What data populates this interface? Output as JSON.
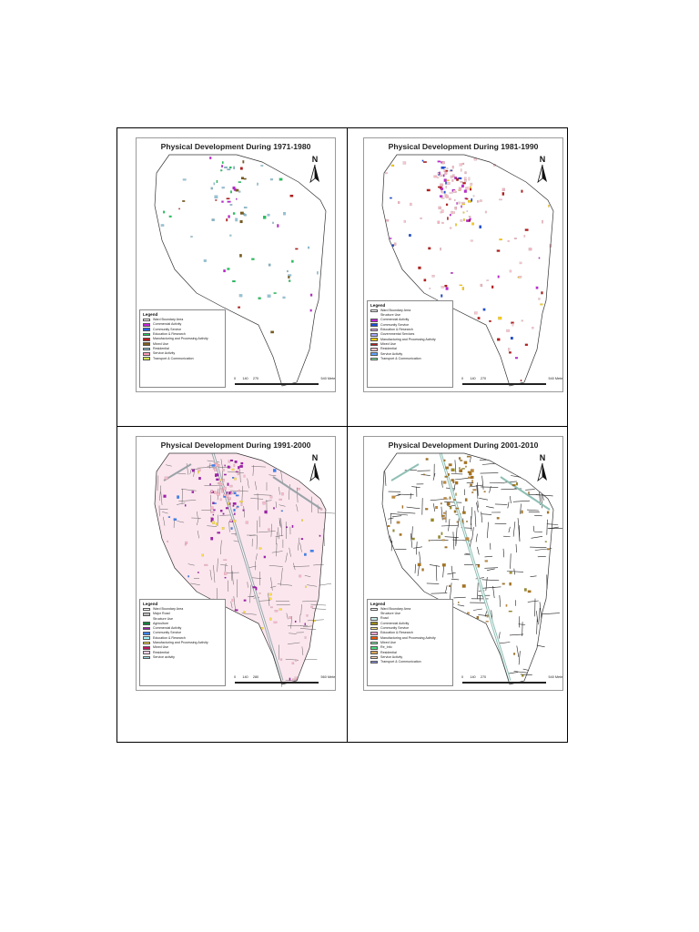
{
  "panels": [
    {
      "id": "panel-1",
      "title": "Physical Development During 1971-1980",
      "north_label": "N",
      "legend_title": "Legend",
      "legend": [
        {
          "label": "Ward Boundary Area",
          "color": "#ffffff"
        },
        {
          "label": "Commercial Activity",
          "color": "#c026d3"
        },
        {
          "label": "Community Service",
          "color": "#2563eb"
        },
        {
          "label": "Education & Research",
          "color": "#22c55e"
        },
        {
          "label": "Manufacturing and Processing Activity",
          "color": "#b91c1c"
        },
        {
          "label": "Mixed Use",
          "color": "#7a5c1e"
        },
        {
          "label": "Residential",
          "color": "#93c5d9"
        },
        {
          "label": "Service Activity",
          "color": "#fb9ab4"
        },
        {
          "label": "Transport & Communication",
          "color": "#d4e157"
        }
      ],
      "scale": [
        "0",
        "140",
        "270",
        "",
        "540 Meters"
      ],
      "dot_colors": [
        "#93c5d9",
        "#93c5d9",
        "#93c5d9",
        "#7fb3c8",
        "#c026d3",
        "#7a5c1e",
        "#22c55e",
        "#b91c1c"
      ],
      "style": "dots"
    },
    {
      "id": "panel-2",
      "title": "Physical Development During 1981-1990",
      "north_label": "N",
      "legend_title": "Legend",
      "legend_sub": "Structure Use",
      "legend": [
        {
          "label": "Ward Boundary Area",
          "color": "#ffffff"
        },
        {
          "label": "Commercial Activity",
          "color": "#c026d3"
        },
        {
          "label": "Community Service",
          "color": "#1d4ed8"
        },
        {
          "label": "Education & Research",
          "color": "#f0abfc"
        },
        {
          "label": "Governmental Services",
          "color": "#a5a6f6"
        },
        {
          "label": "Manufacturing and Processing Activity",
          "color": "#facc15"
        },
        {
          "label": "Mixed Use",
          "color": "#b91c1c"
        },
        {
          "label": "Residential",
          "color": "#f9c6cf"
        },
        {
          "label": "Service Activity",
          "color": "#60a5fa"
        },
        {
          "label": "Transport & Communication",
          "color": "#86efac"
        }
      ],
      "scale": [
        "0",
        "140",
        "270",
        "",
        "540 Meters"
      ],
      "dot_colors": [
        "#f9c6cf",
        "#f9c6cf",
        "#f9c6cf",
        "#f4b4c0",
        "#c026d3",
        "#facc15",
        "#b91c1c",
        "#1d4ed8"
      ],
      "style": "dots"
    },
    {
      "id": "panel-3",
      "title": "Physical Development During 1991-2000",
      "north_label": "N",
      "legend_title": "Legend",
      "legend_sub": "Structure Use",
      "legend": [
        {
          "label": "Ward Boundary Area",
          "color": "#ffffff"
        },
        {
          "label": "Major Road",
          "color": "#bdbdbd"
        },
        {
          "label": "Agriculture",
          "color": "#15803d"
        },
        {
          "label": "Commercial Activity",
          "color": "#a21caf"
        },
        {
          "label": "Community Service",
          "color": "#3b82f6"
        },
        {
          "label": "Education & Research",
          "color": "#a5f3fc"
        },
        {
          "label": "Manufacturing and Processing Activity",
          "color": "#fde047"
        },
        {
          "label": "Mixed Use",
          "color": "#be185d"
        },
        {
          "label": "Residential",
          "color": "#fbcfe8"
        },
        {
          "label": "Service activity",
          "color": "#99d5e0"
        }
      ],
      "scale": [
        "0",
        "140",
        "280",
        "",
        "560 Meters"
      ],
      "dot_colors": [
        "#f7b9c9",
        "#f7b9c9",
        "#f7b9c9",
        "#a21caf",
        "#a21caf",
        "#fde047",
        "#3b82f6"
      ],
      "style": "streets"
    },
    {
      "id": "panel-4",
      "title": "Physical Development During 2001-2010",
      "north_label": "N",
      "legend_title": "Legend",
      "legend_sub": "Structure Use",
      "legend": [
        {
          "label": "Ward Boundary Area",
          "color": "#ffffff"
        },
        {
          "label": "Road",
          "color": "#c7ece6"
        },
        {
          "label": "Commercial Activity",
          "color": "#9c8b1e"
        },
        {
          "label": "Community Service",
          "color": "#fde68a"
        },
        {
          "label": "Education & Research",
          "color": "#f9a8d4"
        },
        {
          "label": "Manufacturing and Processing Activity",
          "color": "#ea580c"
        },
        {
          "label": "Mixed Use",
          "color": "#86efac"
        },
        {
          "label": "Re_Info",
          "color": "#4ade80"
        },
        {
          "label": "Residential",
          "color": "#d9a55b"
        },
        {
          "label": "Service Activity",
          "color": "#fcd9b6"
        },
        {
          "label": "Transport & Communication",
          "color": "#8b8fe0"
        }
      ],
      "scale": [
        "0",
        "140",
        "270",
        "",
        "540 Meters"
      ],
      "dot_colors": [
        "#a8741f",
        "#a8741f",
        "#c08a3a",
        "#9c8b1e"
      ],
      "style": "streets-dark"
    }
  ]
}
